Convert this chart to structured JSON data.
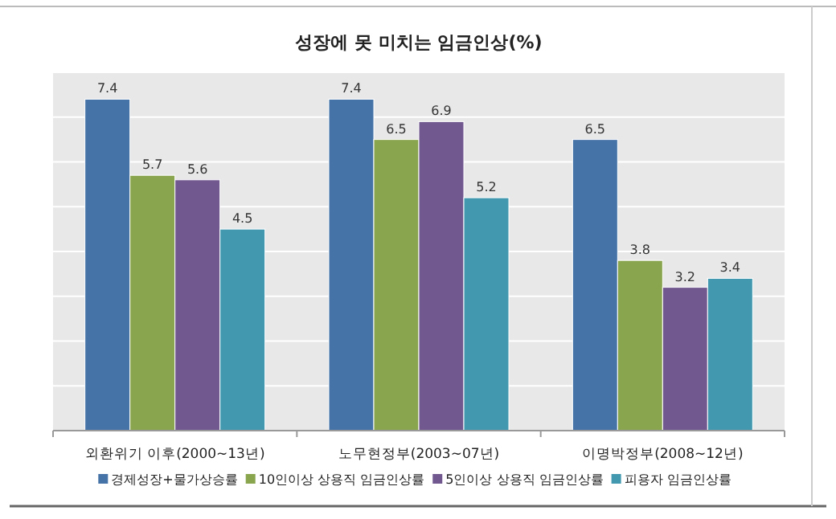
{
  "chart_data": {
    "type": "bar",
    "title": "성장에 못 미치는 임금인상(%)",
    "categories": [
      "외환위기 이후(2000~13년)",
      "노무현정부(2003~07년)",
      "이명박정부(2008~12년)"
    ],
    "series": [
      {
        "name": "경제성장+물가상승률",
        "color": "#4572a7",
        "values": [
          7.4,
          7.4,
          6.5
        ]
      },
      {
        "name": "10인이상 상용직 임금인상률",
        "color": "#89a54e",
        "values": [
          5.7,
          6.5,
          3.8
        ]
      },
      {
        "name": "5인이상 상용직 임금인상률",
        "color": "#71588f",
        "values": [
          5.6,
          6.9,
          3.2
        ]
      },
      {
        "name": "피용자 임금인상률",
        "color": "#4198af",
        "values": [
          4.5,
          5.2,
          3.4
        ]
      }
    ],
    "ylim": [
      0,
      8
    ],
    "yticks": [
      {
        "value": 0,
        "label": null
      },
      {
        "value": 1,
        "label": null
      },
      {
        "value": 2,
        "label": null
      },
      {
        "value": 3,
        "label": null
      },
      {
        "value": 4,
        "label": null
      },
      {
        "value": 5,
        "label": null
      },
      {
        "value": 6,
        "label": null
      },
      {
        "value": 7,
        "label": null
      },
      {
        "value": 8,
        "label": null
      }
    ],
    "grid": "y",
    "legend": "bottom",
    "data_labels": true
  }
}
